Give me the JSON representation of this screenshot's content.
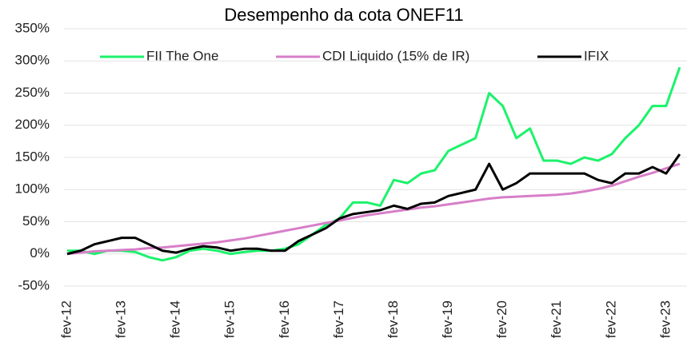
{
  "chart_data": {
    "type": "line",
    "title": "Desempenho da cota ONEF11",
    "categories": [
      "fev-12",
      null,
      null,
      null,
      "fev-13",
      null,
      null,
      null,
      "fev-14",
      null,
      null,
      null,
      "fev-15",
      null,
      null,
      null,
      "fev-16",
      null,
      null,
      null,
      "fev-17",
      null,
      null,
      null,
      "fev-18",
      null,
      null,
      null,
      "fev-19",
      null,
      null,
      null,
      "fev-20",
      null,
      null,
      null,
      "fev-21",
      null,
      null,
      null,
      "fev-22",
      null,
      null,
      null,
      "fev-23",
      null
    ],
    "series": [
      {
        "name": "FII The One",
        "color": "#1cf26b",
        "values": [
          5,
          5,
          0,
          5,
          5,
          3,
          -5,
          -10,
          -5,
          5,
          8,
          5,
          0,
          3,
          5,
          5,
          8,
          15,
          30,
          45,
          55,
          80,
          80,
          75,
          115,
          110,
          125,
          130,
          160,
          170,
          180,
          250,
          230,
          180,
          195,
          145,
          145,
          140,
          150,
          145,
          155,
          180,
          200,
          230,
          230,
          290
        ]
      },
      {
        "name": "CDI Liquido (15% de IR)",
        "color": "#d77fc8",
        "values": [
          0,
          2,
          4,
          5,
          6,
          7,
          9,
          10,
          12,
          14,
          16,
          18,
          21,
          24,
          28,
          32,
          36,
          40,
          44,
          48,
          52,
          56,
          60,
          63,
          66,
          69,
          72,
          74,
          77,
          80,
          83,
          86,
          88,
          89,
          90,
          91,
          92,
          94,
          97,
          101,
          106,
          113,
          120,
          126,
          133,
          140
        ]
      },
      {
        "name": "IFIX",
        "color": "#000000",
        "values": [
          0,
          5,
          15,
          20,
          25,
          25,
          15,
          5,
          2,
          8,
          12,
          10,
          5,
          8,
          8,
          5,
          5,
          20,
          30,
          40,
          55,
          62,
          65,
          68,
          75,
          70,
          78,
          80,
          90,
          95,
          100,
          140,
          100,
          110,
          125,
          125,
          125,
          125,
          125,
          115,
          110,
          125,
          125,
          135,
          125,
          155
        ]
      }
    ],
    "ylim": [
      -50,
      350
    ],
    "yticks": [
      {
        "value": -50,
        "label": "-50%"
      },
      {
        "value": 0,
        "label": "0%"
      },
      {
        "value": 50,
        "label": "50%"
      },
      {
        "value": 100,
        "label": "100%"
      },
      {
        "value": 150,
        "label": "150%"
      },
      {
        "value": 200,
        "label": "200%"
      },
      {
        "value": 250,
        "label": "250%"
      },
      {
        "value": 300,
        "label": "300%"
      },
      {
        "value": 350,
        "label": "350%"
      }
    ],
    "grid": true
  }
}
